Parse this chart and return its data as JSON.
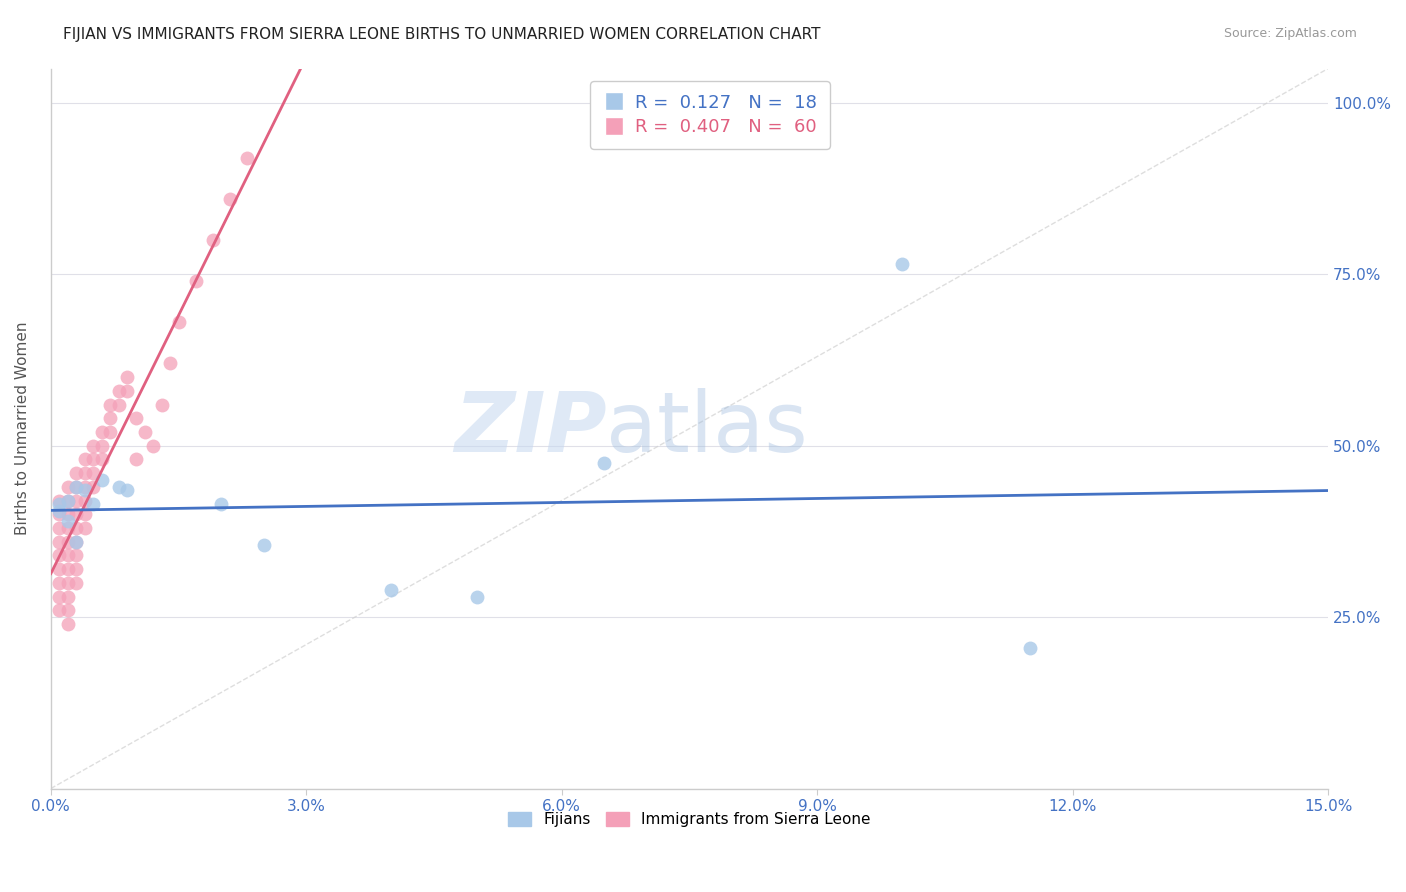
{
  "title": "FIJIAN VS IMMIGRANTS FROM SIERRA LEONE BIRTHS TO UNMARRIED WOMEN CORRELATION CHART",
  "source": "Source: ZipAtlas.com",
  "ylabel": "Births to Unmarried Women",
  "ytick_labels": [
    "",
    "25.0%",
    "50.0%",
    "75.0%",
    "100.0%"
  ],
  "ytick_values": [
    0.0,
    0.25,
    0.5,
    0.75,
    1.0
  ],
  "xlim": [
    0.0,
    0.15
  ],
  "ylim": [
    0.0,
    1.05
  ],
  "fijian_R": 0.127,
  "fijian_N": 18,
  "sierra_leone_R": 0.407,
  "sierra_leone_N": 60,
  "fijian_color": "#a8c8e8",
  "sierra_leone_color": "#f4a0b8",
  "fijian_line_color": "#4472c4",
  "sierra_leone_line_color": "#e06080",
  "watermark_zip": "ZIP",
  "watermark_atlas": "atlas",
  "fijian_x": [
    0.001,
    0.001,
    0.002,
    0.002,
    0.003,
    0.003,
    0.004,
    0.005,
    0.006,
    0.008,
    0.009,
    0.02,
    0.025,
    0.04,
    0.05,
    0.065,
    0.1,
    0.115
  ],
  "fijian_y": [
    0.415,
    0.405,
    0.42,
    0.39,
    0.44,
    0.36,
    0.435,
    0.415,
    0.45,
    0.44,
    0.435,
    0.415,
    0.355,
    0.29,
    0.28,
    0.475,
    0.765,
    0.205
  ],
  "sierra_leone_x": [
    0.001,
    0.001,
    0.001,
    0.001,
    0.001,
    0.001,
    0.001,
    0.001,
    0.001,
    0.002,
    0.002,
    0.002,
    0.002,
    0.002,
    0.002,
    0.002,
    0.002,
    0.002,
    0.002,
    0.002,
    0.003,
    0.003,
    0.003,
    0.003,
    0.003,
    0.003,
    0.003,
    0.003,
    0.003,
    0.004,
    0.004,
    0.004,
    0.004,
    0.004,
    0.004,
    0.005,
    0.005,
    0.005,
    0.005,
    0.006,
    0.006,
    0.006,
    0.007,
    0.007,
    0.007,
    0.008,
    0.008,
    0.009,
    0.009,
    0.01,
    0.01,
    0.011,
    0.012,
    0.013,
    0.014,
    0.015,
    0.017,
    0.019,
    0.021,
    0.023
  ],
  "sierra_leone_y": [
    0.42,
    0.4,
    0.38,
    0.36,
    0.34,
    0.32,
    0.3,
    0.28,
    0.26,
    0.44,
    0.42,
    0.4,
    0.38,
    0.36,
    0.34,
    0.32,
    0.3,
    0.28,
    0.26,
    0.24,
    0.46,
    0.44,
    0.42,
    0.4,
    0.38,
    0.36,
    0.34,
    0.32,
    0.3,
    0.48,
    0.46,
    0.44,
    0.42,
    0.4,
    0.38,
    0.5,
    0.48,
    0.46,
    0.44,
    0.52,
    0.5,
    0.48,
    0.56,
    0.54,
    0.52,
    0.58,
    0.56,
    0.6,
    0.58,
    0.54,
    0.48,
    0.52,
    0.5,
    0.56,
    0.62,
    0.68,
    0.74,
    0.8,
    0.86,
    0.92
  ],
  "background_color": "#ffffff",
  "grid_color": "#e0e0e8"
}
